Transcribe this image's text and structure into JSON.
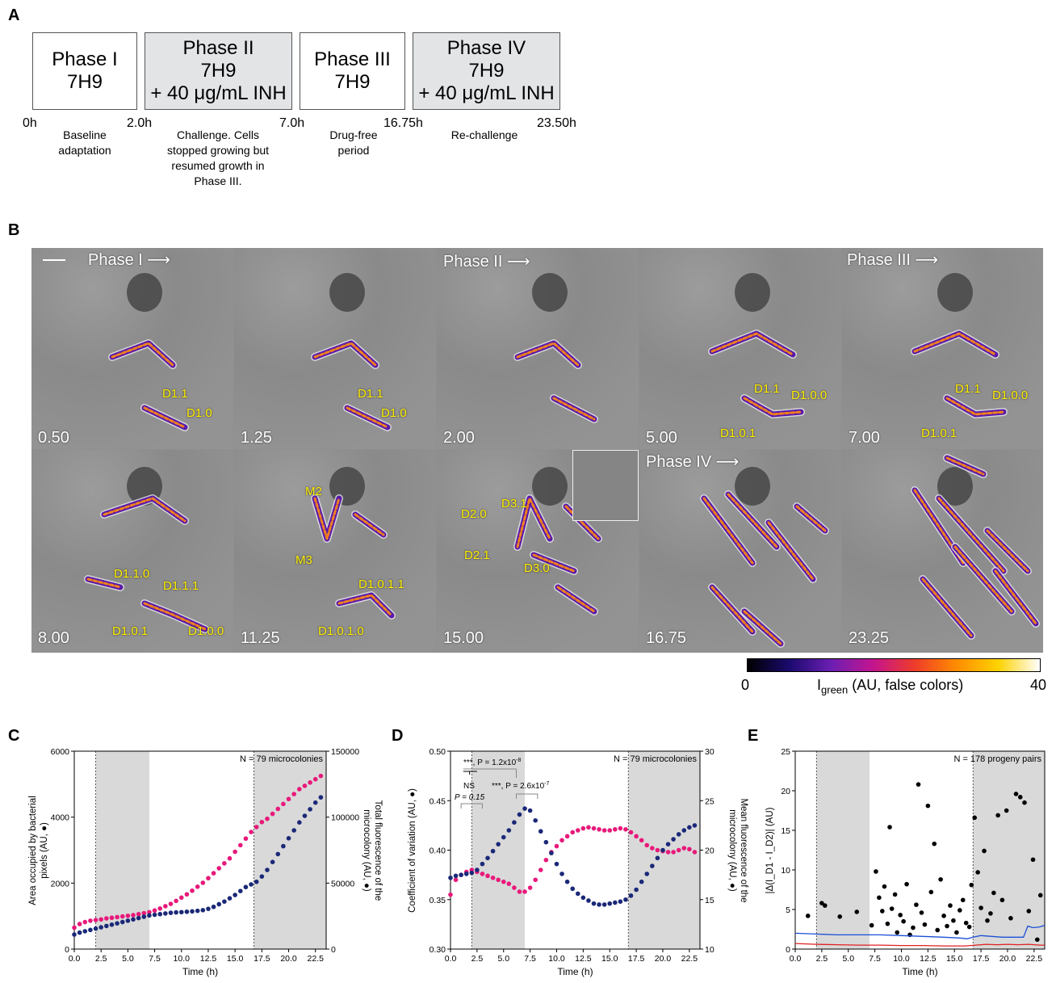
{
  "panel_labels": {
    "a": "A",
    "b": "B",
    "c": "C",
    "d": "D",
    "e": "E"
  },
  "phases": [
    {
      "name": "Phase I",
      "line2": "7H9",
      "line3": "",
      "fill": "white"
    },
    {
      "name": "Phase II",
      "line2": "7H9",
      "line3": "+ 40 μg/mL INH",
      "fill": "grey"
    },
    {
      "name": "Phase III",
      "line2": "7H9",
      "line3": "",
      "fill": "white"
    },
    {
      "name": "Phase IV",
      "line2": "7H9",
      "line3": "+ 40 μg/mL INH",
      "fill": "grey"
    }
  ],
  "timeline_ticks": [
    "0h",
    "2.0h",
    "7.0h",
    "16.75h",
    "23.50h"
  ],
  "timeline_desc": {
    "baseline_1": "Baseline",
    "baseline_2": "adaptation",
    "challenge_1": "Challenge. Cells",
    "challenge_2": "stopped growing but",
    "challenge_3": "resumed growth in",
    "challenge_4": "Phase III.",
    "drugfree_1": "Drug-free",
    "drugfree_2": "period",
    "rechallenge": "Re-challenge"
  },
  "micro": {
    "times": [
      "0.50",
      "1.25",
      "2.00",
      "5.00",
      "7.00",
      "8.00",
      "11.25",
      "15.00",
      "16.75",
      "23.25"
    ],
    "phase_arrows": {
      "p1": "Phase I",
      "p2": "Phase II",
      "p3": "Phase III",
      "p4": "Phase IV"
    },
    "labels": {
      "d11": "D1.1",
      "d10": "D1.0",
      "d100": "D1.0.0",
      "d101": "D1.0.1",
      "d110": "D1.1.0",
      "d111": "D1.1.1",
      "d1011": "D1.0.1.1",
      "d1010": "D1.0.1.0",
      "m2": "M2",
      "m3": "M3",
      "d20": "D2.0",
      "d31": "D3.1",
      "d21": "D2.1",
      "d30": "D3.0"
    }
  },
  "colorbar": {
    "min": "0",
    "max": "40",
    "label_pre": "I",
    "label_sub": "green",
    "label_post": " (AU, false colors)",
    "colors": [
      "#000000",
      "#1a0a6e",
      "#6b1fb3",
      "#c4148f",
      "#ee3b2a",
      "#ff8c00",
      "#ffd200",
      "#ffffff"
    ]
  },
  "chart_data": [
    {
      "type": "scatter",
      "panel": "C",
      "xlabel": "Time (h)",
      "ylabel": "Area occupied by bacterial pixels (AU, ●)",
      "ylabel_line1": "Area occupied by bacterial",
      "ylabel_line2": "pixels (AU, ●)",
      "y2label_line1": "Total fluorescence of the",
      "y2label_line2": "microcolony (AU, ●)",
      "annotation": "N = 79 microcolonies",
      "xlim": [
        0,
        23.5
      ],
      "ylim": [
        0,
        6000
      ],
      "y2lim": [
        0,
        150000
      ],
      "xticks": [
        "0.0",
        "2.5",
        "5.0",
        "7.5",
        "10.0",
        "12.5",
        "15.0",
        "17.5",
        "20.0",
        "22.5"
      ],
      "yticks": [
        "0",
        "2000",
        "4000",
        "6000"
      ],
      "y2ticks": [
        "0",
        "50000",
        "100000",
        "150000"
      ],
      "shaded": [
        [
          2,
          7
        ],
        [
          16.75,
          23.5
        ]
      ],
      "series": [
        {
          "color": "#e8197a",
          "axis": "left",
          "x": [
            0,
            0.5,
            1,
            1.5,
            2,
            2.5,
            3,
            3.5,
            4,
            4.5,
            5,
            5.5,
            6,
            6.5,
            7,
            7.5,
            8,
            8.5,
            9,
            9.5,
            10,
            10.5,
            11,
            11.5,
            12,
            12.5,
            13,
            13.5,
            14,
            14.5,
            15,
            15.5,
            16,
            16.5,
            17,
            17.5,
            18,
            18.5,
            19,
            19.5,
            20,
            20.5,
            21,
            21.5,
            22,
            22.5,
            23
          ],
          "y": [
            650,
            760,
            820,
            860,
            880,
            900,
            930,
            950,
            970,
            990,
            1010,
            1030,
            1060,
            1090,
            1120,
            1170,
            1230,
            1300,
            1370,
            1460,
            1560,
            1660,
            1770,
            1890,
            2010,
            2150,
            2300,
            2450,
            2600,
            2750,
            2950,
            3150,
            3350,
            3550,
            3700,
            3850,
            3950,
            4100,
            4250,
            4400,
            4550,
            4700,
            4850,
            4950,
            5050,
            5150,
            5250
          ]
        },
        {
          "color": "#1a2878",
          "axis": "right",
          "x": [
            0,
            0.5,
            1,
            1.5,
            2,
            2.5,
            3,
            3.5,
            4,
            4.5,
            5,
            5.5,
            6,
            6.5,
            7,
            7.5,
            8,
            8.5,
            9,
            9.5,
            10,
            10.5,
            11,
            11.5,
            12,
            12.5,
            13,
            13.5,
            14,
            14.5,
            15,
            15.5,
            16,
            16.5,
            17,
            17.5,
            18,
            18.5,
            19,
            19.5,
            20,
            20.5,
            21,
            21.5,
            22,
            22.5,
            23
          ],
          "y": [
            11000,
            12500,
            13500,
            14500,
            15500,
            16500,
            17500,
            18500,
            19500,
            20500,
            21500,
            22500,
            23500,
            24500,
            25500,
            26000,
            26500,
            27000,
            27500,
            27800,
            28000,
            28300,
            28600,
            29000,
            29500,
            30500,
            32000,
            34000,
            36000,
            38500,
            41000,
            44000,
            47000,
            49000,
            51000,
            55000,
            60000,
            66000,
            72000,
            78000,
            84000,
            90000,
            96000,
            101000,
            106000,
            111000,
            115000
          ]
        }
      ]
    },
    {
      "type": "scatter",
      "panel": "D",
      "xlabel": "Time (h)",
      "ylabel": "Coefficient of variation (AU, ●)",
      "y2label_line1": "Mean fluorescence of the",
      "y2label_line2": "microcolony (AU, ●)",
      "annotation": "N = 79 microcolonies",
      "xlim": [
        0,
        23.5
      ],
      "ylim": [
        0.3,
        0.5
      ],
      "y2lim": [
        10,
        30
      ],
      "xticks": [
        "0.0",
        "2.5",
        "5.0",
        "7.5",
        "10.0",
        "12.5",
        "15.0",
        "17.5",
        "20.0",
        "22.5"
      ],
      "yticks": [
        "0.30",
        "0.35",
        "0.40",
        "0.45",
        "0.50"
      ],
      "y2ticks": [
        "10",
        "15",
        "20",
        "25",
        "30"
      ],
      "shaded": [
        [
          2,
          7
        ],
        [
          16.75,
          23.5
        ]
      ],
      "stats": {
        "s1": "***, P = 1.2x10",
        "s1_exp": "-8",
        "s2": "NS",
        "s3": "P = 0.15",
        "s4": "***, P = 2.6x10",
        "s4_exp": "-7"
      },
      "series": [
        {
          "color": "#e8197a",
          "axis": "left",
          "x": [
            0,
            0.5,
            1,
            1.5,
            2,
            2.5,
            3,
            3.5,
            4,
            4.5,
            5,
            5.5,
            6,
            6.5,
            7,
            7.5,
            8,
            8.5,
            9,
            9.5,
            10,
            10.5,
            11,
            11.5,
            12,
            12.5,
            13,
            13.5,
            14,
            14.5,
            15,
            15.5,
            16,
            16.5,
            17,
            17.5,
            18,
            18.5,
            19,
            19.5,
            20,
            20.5,
            21,
            21.5,
            22,
            22.5,
            23
          ],
          "y": [
            0.355,
            0.37,
            0.375,
            0.378,
            0.38,
            0.378,
            0.376,
            0.374,
            0.372,
            0.37,
            0.368,
            0.366,
            0.362,
            0.358,
            0.358,
            0.362,
            0.37,
            0.38,
            0.39,
            0.398,
            0.404,
            0.41,
            0.414,
            0.418,
            0.42,
            0.422,
            0.423,
            0.422,
            0.421,
            0.42,
            0.42,
            0.421,
            0.422,
            0.421,
            0.418,
            0.414,
            0.41,
            0.405,
            0.402,
            0.4,
            0.399,
            0.398,
            0.398,
            0.4,
            0.402,
            0.401,
            0.398
          ]
        },
        {
          "color": "#1a2878",
          "axis": "right",
          "x": [
            0,
            0.5,
            1,
            1.5,
            2,
            2.5,
            3,
            3.5,
            4,
            4.5,
            5,
            5.5,
            6,
            6.5,
            7,
            7.5,
            8,
            8.5,
            9,
            9.5,
            10,
            10.5,
            11,
            11.5,
            12,
            12.5,
            13,
            13.5,
            14,
            14.5,
            15,
            15.5,
            16,
            16.5,
            17,
            17.5,
            18,
            18.5,
            19,
            19.5,
            20,
            20.5,
            21,
            21.5,
            22,
            22.5,
            23
          ],
          "y": [
            17.2,
            17.4,
            17.5,
            17.6,
            17.7,
            18.0,
            18.6,
            19.2,
            19.9,
            20.6,
            21.3,
            22.0,
            22.8,
            23.6,
            24.2,
            24.0,
            23.0,
            21.9,
            20.8,
            19.7,
            18.6,
            17.6,
            16.8,
            16.1,
            15.6,
            15.2,
            14.9,
            14.6,
            14.5,
            14.5,
            14.6,
            14.7,
            14.8,
            15.0,
            15.4,
            16.0,
            16.8,
            17.6,
            18.4,
            19.2,
            20.0,
            20.6,
            21.1,
            21.6,
            22.0,
            22.3,
            22.5
          ]
        }
      ]
    },
    {
      "type": "scatter",
      "panel": "E",
      "xlabel": "Time (h)",
      "ylabel": "|Δ(I_D1 - I_D2)| (AU)",
      "annotation": "N = 178 progeny pairs",
      "xlim": [
        0,
        23.5
      ],
      "ylim": [
        0,
        25
      ],
      "xticks": [
        "0.0",
        "2.5",
        "5.0",
        "7.5",
        "10.0",
        "12.5",
        "15.0",
        "17.5",
        "20.0",
        "22.5"
      ],
      "yticks": [
        "0",
        "5",
        "10",
        "15",
        "20",
        "25"
      ],
      "shaded": [
        [
          2,
          7
        ],
        [
          16.75,
          23.5
        ]
      ],
      "series": [
        {
          "color": "#000000",
          "type": "scatter",
          "x": [
            1.2,
            2.5,
            2.8,
            4.2,
            5.8,
            7.2,
            7.6,
            7.9,
            8.2,
            8.4,
            8.7,
            8.9,
            9.1,
            9.4,
            9.6,
            9.9,
            10.2,
            10.5,
            10.8,
            11.1,
            11.4,
            11.6,
            11.9,
            12.2,
            12.5,
            12.8,
            13.1,
            13.4,
            13.7,
            14,
            14.3,
            14.6,
            14.9,
            15.2,
            15.5,
            15.8,
            16.1,
            16.4,
            16.6,
            16.9,
            17.2,
            17.5,
            17.8,
            18.1,
            18.4,
            18.7,
            19.1,
            19.5,
            19.9,
            20.3,
            20.8,
            21.2,
            21.6,
            22,
            22.4,
            22.8,
            23.1
          ],
          "y": [
            4.2,
            5.8,
            5.5,
            4.1,
            4.7,
            3.0,
            9.8,
            6.5,
            4.8,
            7.9,
            3.2,
            15.4,
            5.1,
            6.9,
            2.1,
            4.3,
            3.5,
            8.2,
            1.8,
            2.7,
            5.6,
            20.8,
            4.6,
            3.1,
            18.1,
            7.2,
            13.3,
            2.4,
            8.8,
            4.2,
            2.9,
            5.5,
            3.6,
            2.1,
            4.9,
            6.2,
            3.3,
            2.8,
            8.1,
            16.6,
            9.7,
            5.2,
            12.4,
            3.6,
            4.5,
            7.1,
            16.9,
            6.2,
            17.5,
            3.9,
            19.6,
            19.2,
            18.5,
            4.8,
            11.3,
            1.2,
            6.8
          ]
        },
        {
          "color": "#1a4fd6",
          "type": "line",
          "x": [
            0,
            2,
            4,
            6,
            8,
            10,
            12,
            14,
            15.5,
            16.2,
            16.75,
            17.5,
            18.5,
            19.5,
            20.5,
            21.5,
            21.9,
            22.4,
            23.0,
            23.5
          ],
          "y": [
            2.0,
            1.9,
            1.8,
            1.8,
            1.8,
            1.7,
            1.6,
            1.5,
            1.4,
            1.3,
            1.5,
            1.7,
            1.6,
            1.5,
            1.5,
            1.5,
            2.9,
            2.7,
            2.8,
            3.0
          ]
        },
        {
          "color": "#e02020",
          "type": "line",
          "x": [
            0,
            2,
            4,
            6,
            8,
            10,
            12,
            14,
            16,
            17,
            18,
            19,
            20,
            21,
            22,
            23,
            23.5
          ],
          "y": [
            0.7,
            0.6,
            0.55,
            0.5,
            0.5,
            0.45,
            0.45,
            0.4,
            0.4,
            0.5,
            0.6,
            0.55,
            0.6,
            0.55,
            0.6,
            0.5,
            0.5
          ]
        }
      ]
    }
  ]
}
